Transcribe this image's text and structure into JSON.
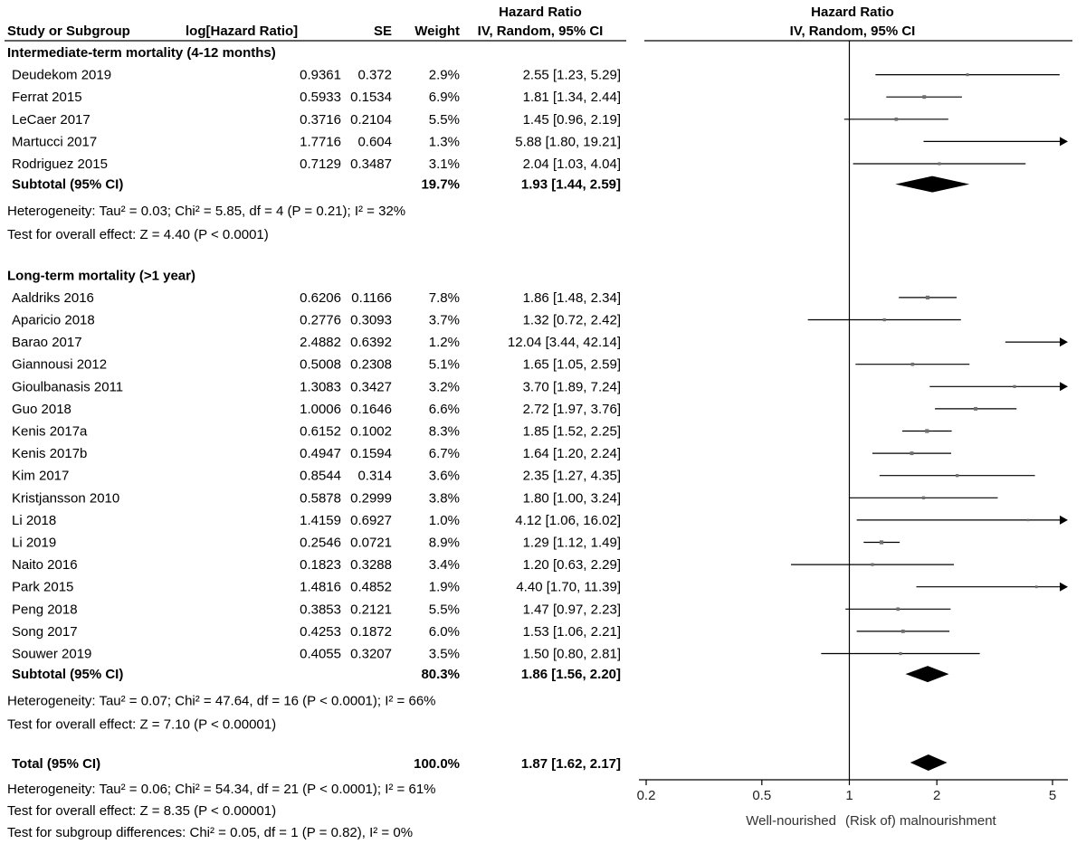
{
  "chart_data": {
    "type": "forest",
    "scale": "log",
    "xlim": [
      0.2,
      5
    ],
    "null_value": 1,
    "header": {
      "study": "Study or Subgroup",
      "loghr": "log[Hazard Ratio]",
      "se": "SE",
      "weight": "Weight",
      "hr_title": "Hazard Ratio",
      "hr_method": "IV, Random, 95% CI",
      "plot_title": "Hazard Ratio",
      "plot_method": "IV, Random, 95% CI"
    },
    "x_ticks": [
      "0.2",
      "0.5",
      "1",
      "2",
      "5"
    ],
    "x_tick_values": [
      0.2,
      0.5,
      1,
      2,
      5
    ],
    "favours_left": "Well-nourished",
    "favours_right": "(Risk of) malnourishment",
    "groups": [
      {
        "title": "Intermediate-term mortality (4-12 months)",
        "studies": [
          {
            "name": "Deudekom 2019",
            "loghr": "0.9361",
            "se": "0.372",
            "weight": "2.9%",
            "ci_text": "2.55 [1.23, 5.29]",
            "hr": 2.55,
            "lo": 1.23,
            "hi": 5.29,
            "w": 2.9
          },
          {
            "name": "Ferrat 2015",
            "loghr": "0.5933",
            "se": "0.1534",
            "weight": "6.9%",
            "ci_text": "1.81 [1.34, 2.44]",
            "hr": 1.81,
            "lo": 1.34,
            "hi": 2.44,
            "w": 6.9
          },
          {
            "name": "LeCaer 2017",
            "loghr": "0.3716",
            "se": "0.2104",
            "weight": "5.5%",
            "ci_text": "1.45 [0.96, 2.19]",
            "hr": 1.45,
            "lo": 0.96,
            "hi": 2.19,
            "w": 5.5
          },
          {
            "name": "Martucci 2017",
            "loghr": "1.7716",
            "se": "0.604",
            "weight": "1.3%",
            "ci_text": "5.88 [1.80, 19.21]",
            "hr": 5.88,
            "lo": 1.8,
            "hi": 19.21,
            "w": 1.3
          },
          {
            "name": "Rodriguez 2015",
            "loghr": "0.7129",
            "se": "0.3487",
            "weight": "3.1%",
            "ci_text": "2.04 [1.03, 4.04]",
            "hr": 2.04,
            "lo": 1.03,
            "hi": 4.04,
            "w": 3.1
          }
        ],
        "subtotal": {
          "label": "Subtotal (95% CI)",
          "weight": "19.7%",
          "ci_text": "1.93 [1.44, 2.59]",
          "hr": 1.93,
          "lo": 1.44,
          "hi": 2.59
        },
        "heterogeneity": "Heterogeneity: Tau² = 0.03; Chi² = 5.85, df = 4 (P = 0.21); I² = 32%",
        "overall": "Test for overall effect: Z = 4.40 (P < 0.0001)"
      },
      {
        "title": "Long-term mortality (>1 year)",
        "studies": [
          {
            "name": "Aaldriks 2016",
            "loghr": "0.6206",
            "se": "0.1166",
            "weight": "7.8%",
            "ci_text": "1.86 [1.48, 2.34]",
            "hr": 1.86,
            "lo": 1.48,
            "hi": 2.34,
            "w": 7.8
          },
          {
            "name": "Aparicio 2018",
            "loghr": "0.2776",
            "se": "0.3093",
            "weight": "3.7%",
            "ci_text": "1.32 [0.72, 2.42]",
            "hr": 1.32,
            "lo": 0.72,
            "hi": 2.42,
            "w": 3.7
          },
          {
            "name": "Barao 2017",
            "loghr": "2.4882",
            "se": "0.6392",
            "weight": "1.2%",
            "ci_text": "12.04 [3.44, 42.14]",
            "hr": 12.04,
            "lo": 3.44,
            "hi": 42.14,
            "w": 1.2
          },
          {
            "name": "Giannousi 2012",
            "loghr": "0.5008",
            "se": "0.2308",
            "weight": "5.1%",
            "ci_text": "1.65 [1.05, 2.59]",
            "hr": 1.65,
            "lo": 1.05,
            "hi": 2.59,
            "w": 5.1
          },
          {
            "name": "Gioulbanasis 2011",
            "loghr": "1.3083",
            "se": "0.3427",
            "weight": "3.2%",
            "ci_text": "3.70 [1.89, 7.24]",
            "hr": 3.7,
            "lo": 1.89,
            "hi": 7.24,
            "w": 3.2
          },
          {
            "name": "Guo 2018",
            "loghr": "1.0006",
            "se": "0.1646",
            "weight": "6.6%",
            "ci_text": "2.72 [1.97, 3.76]",
            "hr": 2.72,
            "lo": 1.97,
            "hi": 3.76,
            "w": 6.6
          },
          {
            "name": "Kenis 2017a",
            "loghr": "0.6152",
            "se": "0.1002",
            "weight": "8.3%",
            "ci_text": "1.85 [1.52, 2.25]",
            "hr": 1.85,
            "lo": 1.52,
            "hi": 2.25,
            "w": 8.3
          },
          {
            "name": "Kenis 2017b",
            "loghr": "0.4947",
            "se": "0.1594",
            "weight": "6.7%",
            "ci_text": "1.64 [1.20, 2.24]",
            "hr": 1.64,
            "lo": 1.2,
            "hi": 2.24,
            "w": 6.7
          },
          {
            "name": "Kim 2017",
            "loghr": "0.8544",
            "se": "0.314",
            "weight": "3.6%",
            "ci_text": "2.35 [1.27, 4.35]",
            "hr": 2.35,
            "lo": 1.27,
            "hi": 4.35,
            "w": 3.6
          },
          {
            "name": "Kristjansson 2010",
            "loghr": "0.5878",
            "se": "0.2999",
            "weight": "3.8%",
            "ci_text": "1.80 [1.00, 3.24]",
            "hr": 1.8,
            "lo": 1.0,
            "hi": 3.24,
            "w": 3.8
          },
          {
            "name": "Li 2018",
            "loghr": "1.4159",
            "se": "0.6927",
            "weight": "1.0%",
            "ci_text": "4.12 [1.06, 16.02]",
            "hr": 4.12,
            "lo": 1.06,
            "hi": 16.02,
            "w": 1.0
          },
          {
            "name": "Li 2019",
            "loghr": "0.2546",
            "se": "0.0721",
            "weight": "8.9%",
            "ci_text": "1.29 [1.12, 1.49]",
            "hr": 1.29,
            "lo": 1.12,
            "hi": 1.49,
            "w": 8.9
          },
          {
            "name": "Naito 2016",
            "loghr": "0.1823",
            "se": "0.3288",
            "weight": "3.4%",
            "ci_text": "1.20 [0.63, 2.29]",
            "hr": 1.2,
            "lo": 0.63,
            "hi": 2.29,
            "w": 3.4
          },
          {
            "name": "Park 2015",
            "loghr": "1.4816",
            "se": "0.4852",
            "weight": "1.9%",
            "ci_text": "4.40 [1.70, 11.39]",
            "hr": 4.4,
            "lo": 1.7,
            "hi": 11.39,
            "w": 1.9
          },
          {
            "name": "Peng 2018",
            "loghr": "0.3853",
            "se": "0.2121",
            "weight": "5.5%",
            "ci_text": "1.47 [0.97, 2.23]",
            "hr": 1.47,
            "lo": 0.97,
            "hi": 2.23,
            "w": 5.5
          },
          {
            "name": "Song 2017",
            "loghr": "0.4253",
            "se": "0.1872",
            "weight": "6.0%",
            "ci_text": "1.53 [1.06, 2.21]",
            "hr": 1.53,
            "lo": 1.06,
            "hi": 2.21,
            "w": 6.0
          },
          {
            "name": "Souwer 2019",
            "loghr": "0.4055",
            "se": "0.3207",
            "weight": "3.5%",
            "ci_text": "1.50 [0.80, 2.81]",
            "hr": 1.5,
            "lo": 0.8,
            "hi": 2.81,
            "w": 3.5
          }
        ],
        "subtotal": {
          "label": "Subtotal (95% CI)",
          "weight": "80.3%",
          "ci_text": "1.86 [1.56, 2.20]",
          "hr": 1.86,
          "lo": 1.56,
          "hi": 2.2
        },
        "heterogeneity": "Heterogeneity: Tau² = 0.07; Chi² = 47.64, df = 16 (P < 0.0001); I² = 66%",
        "overall": "Test for overall effect: Z = 7.10 (P < 0.00001)"
      }
    ],
    "total": {
      "label": "Total (95% CI)",
      "weight": "100.0%",
      "ci_text": "1.87 [1.62, 2.17]",
      "hr": 1.87,
      "lo": 1.62,
      "hi": 2.17,
      "heterogeneity": "Heterogeneity: Tau² = 0.06; Chi² = 54.34, df = 21 (P < 0.0001); I² = 61%",
      "overall": "Test for overall effect: Z = 8.35 (P < 0.00001)",
      "subgroup": "Test for subgroup differences: Chi² = 0.05, df = 1 (P = 0.82), I² = 0%"
    },
    "colors": {
      "text": "#000000",
      "line": "#000000",
      "point": "#707070"
    }
  }
}
